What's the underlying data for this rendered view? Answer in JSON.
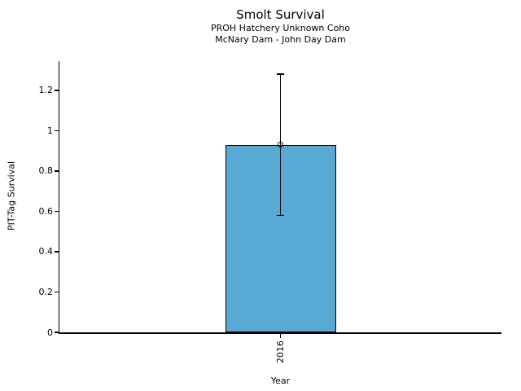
{
  "chart_data": {
    "type": "bar",
    "title": "Smolt Survival",
    "subtitle_line1": "PROH Hatchery Unknown Coho",
    "subtitle_line2": "McNary Dam - John Day Dam",
    "xlabel": "Year",
    "ylabel": "PIT-Tag Survival",
    "categories": [
      "2016"
    ],
    "series": [
      {
        "name": "PIT-Tag Survival",
        "values": [
          0.93
        ],
        "error_low": [
          0.58
        ],
        "error_high": [
          1.28
        ]
      }
    ],
    "yticks": {
      "values": [
        0,
        0.2,
        0.4,
        0.6,
        0.8,
        1,
        1.2
      ],
      "labels": [
        "0",
        "0.2",
        "0.4",
        "0.6",
        "0.8",
        "1",
        "1.2"
      ]
    },
    "ylim": [
      0,
      1.345
    ],
    "grid": false,
    "legend": "none",
    "bar_color": "#58AAD5",
    "bar_edge_color": "#000000",
    "error_color": "#000000",
    "marker": "open-circle",
    "text_color": "#000000"
  }
}
